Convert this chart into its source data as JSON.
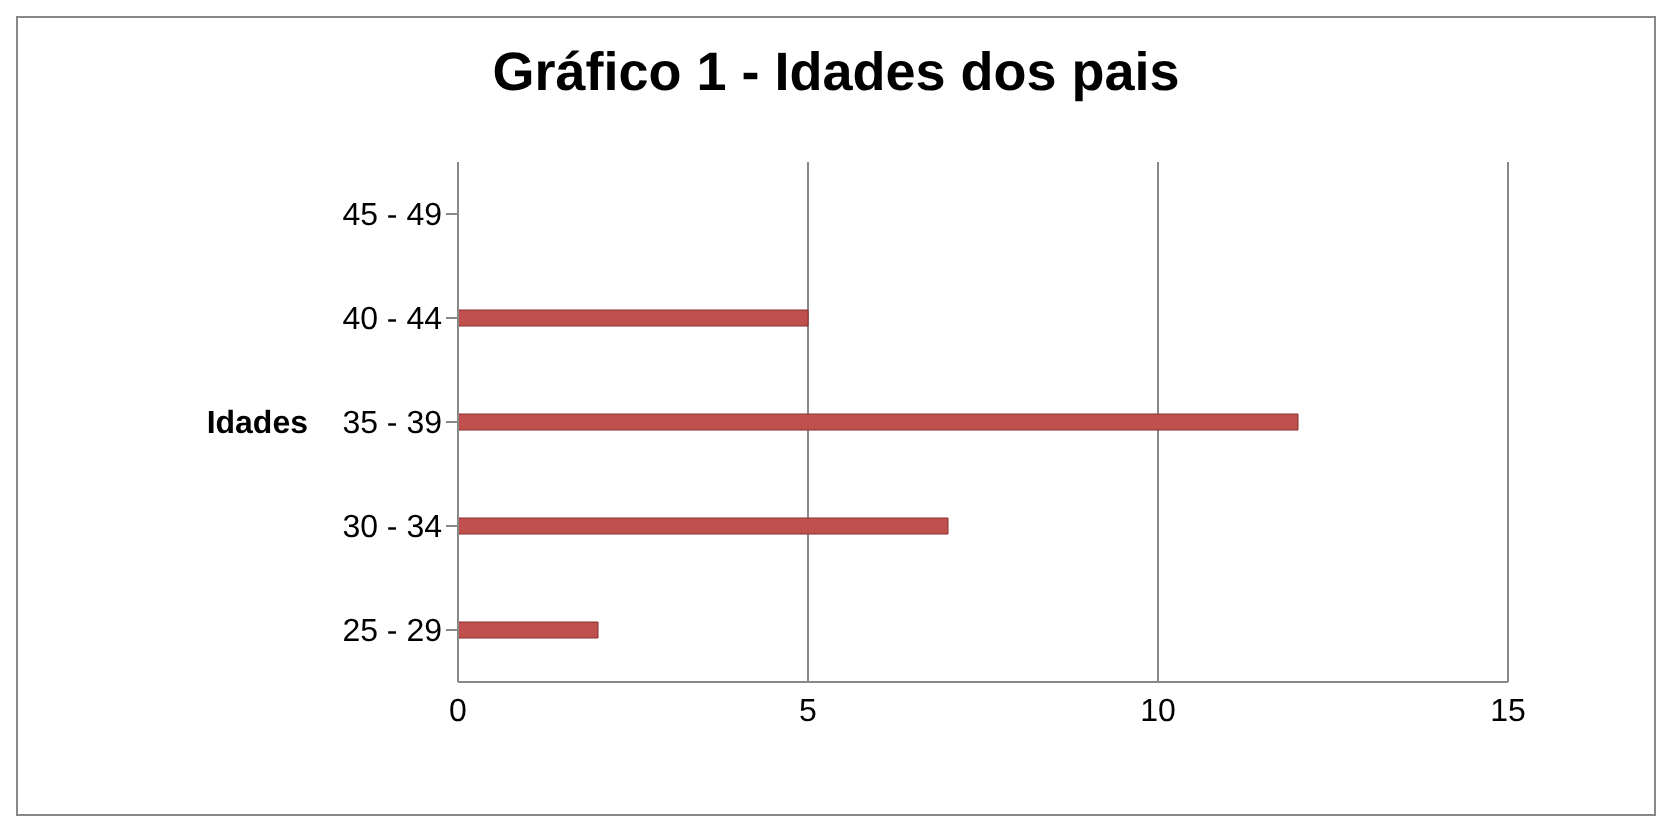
{
  "chart_data": {
    "type": "bar",
    "orientation": "horizontal",
    "title": "Gráfico 1 - Idades dos pais",
    "ylabel": "Idades",
    "categories": [
      "45 - 49",
      "40 - 44",
      "35 - 39",
      "30 - 34",
      "25 - 29"
    ],
    "values": [
      0,
      5,
      12,
      7,
      2
    ],
    "color": "#c0504d",
    "xlim": [
      0,
      15
    ],
    "xticks": [
      0,
      5,
      10,
      15
    ],
    "grid": "x"
  }
}
